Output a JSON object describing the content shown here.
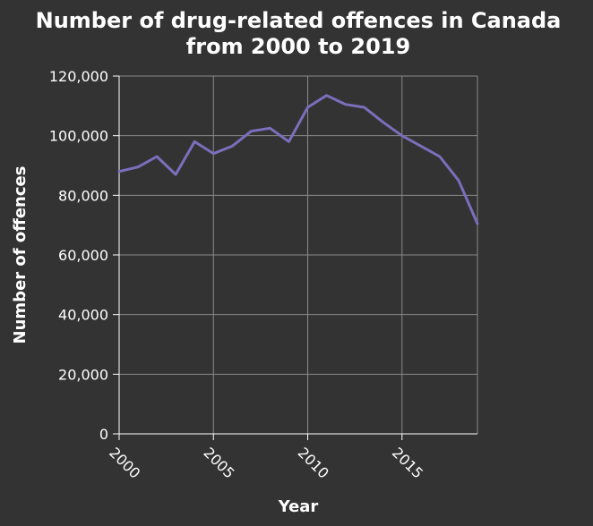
{
  "chart_data": {
    "type": "line",
    "title_lines": [
      "Number of drug-related offences in Canada",
      "from 2000 to 2019"
    ],
    "xlabel": "Year",
    "ylabel": "Number of offences",
    "x": [
      2000,
      2001,
      2002,
      2003,
      2004,
      2005,
      2006,
      2007,
      2008,
      2009,
      2010,
      2011,
      2012,
      2013,
      2014,
      2015,
      2016,
      2017,
      2018,
      2019
    ],
    "series": [
      {
        "color": "#7b6fbd",
        "values": [
          88000,
          89500,
          93000,
          87000,
          98000,
          94000,
          96500,
          101500,
          102500,
          98000,
          109500,
          113500,
          110500,
          109500,
          104500,
          100000,
          96500,
          93000,
          85000,
          70500
        ]
      }
    ],
    "xlim": [
      2000,
      2019
    ],
    "ylim": [
      0,
      120000
    ],
    "xticks": [
      2000,
      2005,
      2010,
      2015
    ],
    "xtick_labels": [
      "2000",
      "2005",
      "2010",
      "2015"
    ],
    "yticks": [
      0,
      20000,
      40000,
      60000,
      80000,
      100000,
      120000
    ],
    "ytick_labels": [
      "0",
      "20,000",
      "40,000",
      "60,000",
      "80,000",
      "100,000",
      "120,000"
    ],
    "grid": true,
    "background": "#333333",
    "grid_color": "#8a8a8a"
  }
}
